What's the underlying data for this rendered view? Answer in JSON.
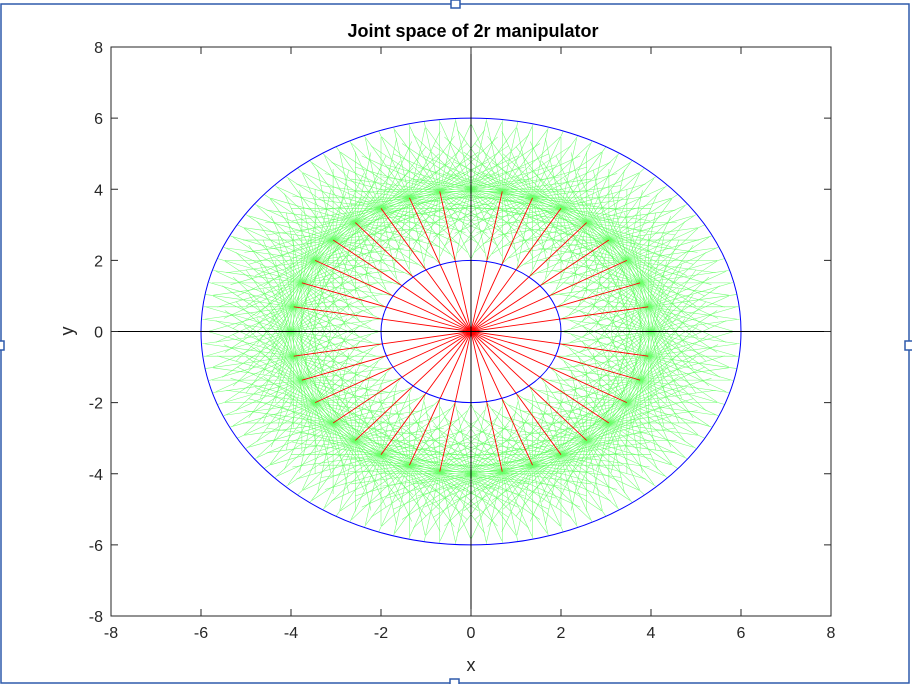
{
  "chart_data": {
    "type": "line",
    "title": "Joint space of 2r manipulator",
    "xlabel": "x",
    "ylabel": "y",
    "xlim": [
      -8,
      8
    ],
    "ylim": [
      -8,
      8
    ],
    "xticks": [
      "-8",
      "-6",
      "-4",
      "-2",
      "0",
      "2",
      "4",
      "6",
      "8"
    ],
    "yticks": [
      "-8",
      "-6",
      "-4",
      "-2",
      "0",
      "2",
      "4",
      "6",
      "8"
    ],
    "grid": false,
    "links": {
      "l1": 4,
      "l2": 2
    },
    "series": [
      {
        "role": "outer-boundary",
        "shape": "circle",
        "center": [
          0,
          0
        ],
        "radius": 6,
        "color": "#0000ff"
      },
      {
        "role": "inner-boundary",
        "shape": "circle",
        "center": [
          0,
          0
        ],
        "radius": 2,
        "color": "#0000ff"
      },
      {
        "role": "link-1",
        "count": 36,
        "from": [
          0,
          0
        ],
        "length": 4,
        "color": "#ff0000"
      },
      {
        "role": "link-2",
        "per_link_1": 36,
        "length": 2,
        "color": "#66ff66"
      }
    ],
    "axis_lines": {
      "x_zero": true,
      "y_zero": true,
      "color": "#000000"
    }
  },
  "colors": {
    "window_border": "#2e5aac",
    "plot_box": "#262626"
  }
}
